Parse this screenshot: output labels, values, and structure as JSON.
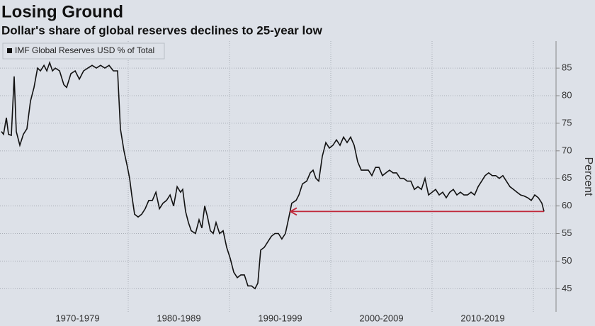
{
  "chart_data": {
    "type": "line",
    "title": "Losing Ground",
    "subtitle": "Dollar's share of global reserves declines to 25-year low",
    "y_label": "Percent",
    "x": [
      1967.48,
      1967.69,
      1967.97,
      1968.18,
      1968.46,
      1968.74,
      1968.95,
      1969.3,
      1969.65,
      1970.0,
      1970.35,
      1970.7,
      1971.05,
      1971.33,
      1971.68,
      1971.96,
      1972.24,
      1972.52,
      1972.8,
      1973.22,
      1973.64,
      1973.92,
      1974.34,
      1974.76,
      1975.17,
      1975.59,
      1976.01,
      1976.43,
      1976.85,
      1977.27,
      1977.69,
      1978.11,
      1978.53,
      1978.95,
      1979.23,
      1979.58,
      1979.93,
      1980.14,
      1980.35,
      1980.63,
      1980.98,
      1981.33,
      1981.68,
      1982.03,
      1982.38,
      1982.73,
      1983.08,
      1983.43,
      1983.78,
      1984.13,
      1984.48,
      1984.83,
      1985.17,
      1985.38,
      1985.66,
      1985.94,
      1986.22,
      1986.64,
      1986.99,
      1987.27,
      1987.55,
      1987.83,
      1988.11,
      1988.39,
      1988.67,
      1989.02,
      1989.37,
      1989.72,
      1990.07,
      1990.42,
      1990.77,
      1991.12,
      1991.47,
      1991.82,
      1992.17,
      1992.52,
      1992.8,
      1993.08,
      1993.43,
      1993.78,
      1994.13,
      1994.48,
      1994.83,
      1995.17,
      1995.52,
      1995.87,
      1996.15,
      1996.57,
      1996.85,
      1997.2,
      1997.62,
      1997.97,
      1998.25,
      1998.53,
      1998.81,
      1999.16,
      1999.51,
      1999.86,
      2000.21,
      2000.56,
      2000.91,
      2001.26,
      2001.61,
      2001.96,
      2002.31,
      2002.66,
      2003.01,
      2003.36,
      2003.71,
      2004.06,
      2004.41,
      2004.76,
      2005.1,
      2005.45,
      2005.8,
      2006.15,
      2006.5,
      2006.85,
      2007.2,
      2007.55,
      2007.9,
      2008.25,
      2008.6,
      2008.95,
      2009.3,
      2009.65,
      2010.0,
      2010.35,
      2010.7,
      2011.05,
      2011.4,
      2011.75,
      2012.1,
      2012.45,
      2012.8,
      2013.15,
      2013.5,
      2013.85,
      2014.2,
      2014.55,
      2014.9,
      2015.24,
      2015.59,
      2015.94,
      2016.29,
      2016.64,
      2016.99,
      2017.34,
      2017.69,
      2018.04,
      2018.39,
      2018.74,
      2019.09,
      2019.44,
      2019.79,
      2020.14,
      2020.49,
      2020.84,
      2021.05
    ],
    "series": [
      {
        "name": "IMF Global Reserves USD % of Total",
        "color": "#111111",
        "values": [
          73.5,
          73,
          76,
          73,
          72.8,
          83.5,
          73.5,
          71,
          73,
          74,
          79,
          81.5,
          85,
          84.5,
          85.5,
          84.5,
          86,
          84.5,
          85,
          84.5,
          82,
          81.5,
          84,
          84.5,
          83,
          84.5,
          85,
          85.5,
          85,
          85.5,
          85,
          85.5,
          84.5,
          84.5,
          74,
          70,
          67,
          65,
          62,
          58.5,
          58,
          58.5,
          59.5,
          61,
          61,
          62.5,
          59.5,
          60.5,
          61,
          62,
          60,
          63.5,
          62.5,
          63,
          59,
          57,
          55.5,
          55,
          57.5,
          56,
          60,
          58,
          55.5,
          55,
          57,
          55,
          55.5,
          52.5,
          50.5,
          48,
          47,
          47.5,
          47.5,
          45.5,
          45.5,
          45,
          46,
          52,
          52.5,
          53.5,
          54.5,
          55,
          55,
          54,
          55,
          58,
          60.5,
          61,
          62,
          64,
          64.5,
          66,
          66.5,
          65,
          64.5,
          69,
          71.5,
          70.5,
          71,
          72,
          71,
          72.5,
          71.5,
          72.5,
          71,
          68,
          66.5,
          66.5,
          66.5,
          65.5,
          67,
          67,
          65.5,
          66,
          66.5,
          66,
          66,
          65,
          65,
          64.5,
          64.5,
          63,
          63.5,
          63,
          65,
          62,
          62.5,
          63,
          62,
          62.5,
          61.5,
          62.5,
          63,
          62,
          62.5,
          62,
          62,
          62.5,
          62,
          63.5,
          64.5,
          65.5,
          66,
          65.5,
          65.5,
          65,
          65.5,
          64.5,
          63.5,
          63,
          62.5,
          62,
          61.8,
          61.5,
          61,
          62,
          61.5,
          60.5,
          59
        ]
      }
    ],
    "xlim": [
      1967.34,
      2022.24
    ],
    "xticks": [
      {
        "value": 1975,
        "label": "1970-1979"
      },
      {
        "value": 1985,
        "label": "1980-1989"
      },
      {
        "value": 1995,
        "label": "1990-1999"
      },
      {
        "value": 2005,
        "label": "2000-2009"
      },
      {
        "value": 2015,
        "label": "2010-2019"
      }
    ],
    "xgrid": [
      1980,
      1990,
      2000,
      2010,
      2020
    ],
    "ylim": [
      40.8,
      89.9
    ],
    "yticks": [
      45,
      50,
      55,
      60,
      65,
      70,
      75,
      80,
      85
    ],
    "grid": true,
    "legend": "top-left",
    "arrow": {
      "from": [
        2021.05,
        59
      ],
      "to": [
        1996.01,
        59
      ],
      "color": "#c0283a"
    }
  }
}
